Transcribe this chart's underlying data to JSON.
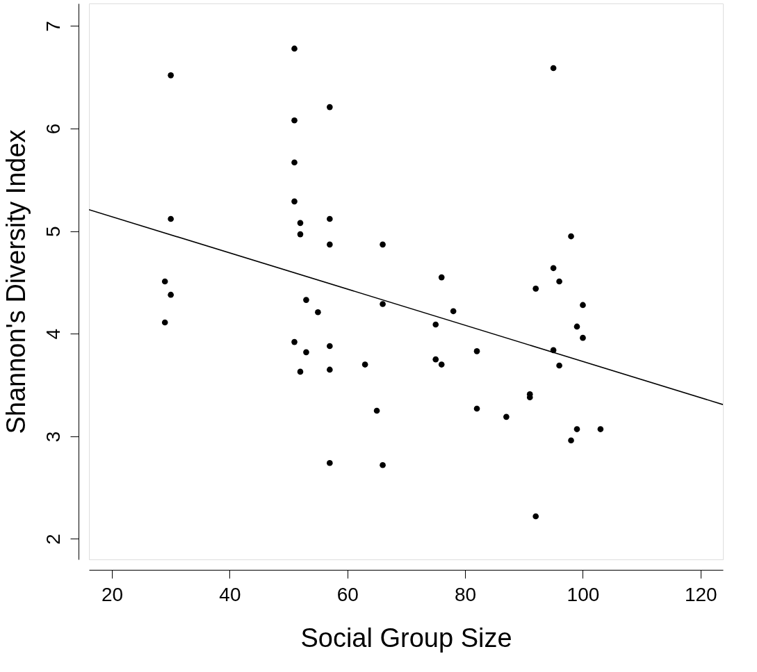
{
  "chart_data": {
    "type": "scatter",
    "xlabel": "Social Group Size",
    "ylabel": "Shannon's Diversity Index",
    "xlim": [
      16.1,
      123.8
    ],
    "ylim": [
      1.8,
      7.22
    ],
    "xticks": [
      20,
      40,
      60,
      80,
      100,
      120
    ],
    "yticks": [
      2,
      3,
      4,
      5,
      6,
      7
    ],
    "grid": false,
    "marker": "circle",
    "series": [
      {
        "color": "#000000",
        "x": [
          29,
          29,
          30,
          30,
          30,
          51,
          51,
          51,
          51,
          51,
          52,
          52,
          52,
          53,
          53,
          55,
          57,
          57,
          57,
          57,
          57,
          57,
          63,
          65,
          66,
          66,
          66,
          75,
          75,
          76,
          76,
          78,
          82,
          82,
          87,
          91,
          91,
          92,
          92,
          95,
          95,
          95,
          96,
          96,
          98,
          98,
          99,
          99,
          100,
          100,
          103
        ],
        "values": [
          4.51,
          4.11,
          4.38,
          5.12,
          6.52,
          6.78,
          6.08,
          5.67,
          5.29,
          3.92,
          5.08,
          4.97,
          3.63,
          4.33,
          3.82,
          4.21,
          6.21,
          5.12,
          4.87,
          3.88,
          3.65,
          2.74,
          3.7,
          3.25,
          4.87,
          4.29,
          2.72,
          4.09,
          3.75,
          4.55,
          3.7,
          4.22,
          3.83,
          3.27,
          3.19,
          3.41,
          3.38,
          4.44,
          2.22,
          6.59,
          4.64,
          3.84,
          4.51,
          3.69,
          4.95,
          2.96,
          4.07,
          3.07,
          4.28,
          3.96,
          3.07
        ]
      },
      {
        "type": "line",
        "marker": "none",
        "line_style": "solid",
        "color": "#000000",
        "x": [
          16.1,
          123.8
        ],
        "values": [
          5.21,
          3.31
        ]
      }
    ]
  }
}
